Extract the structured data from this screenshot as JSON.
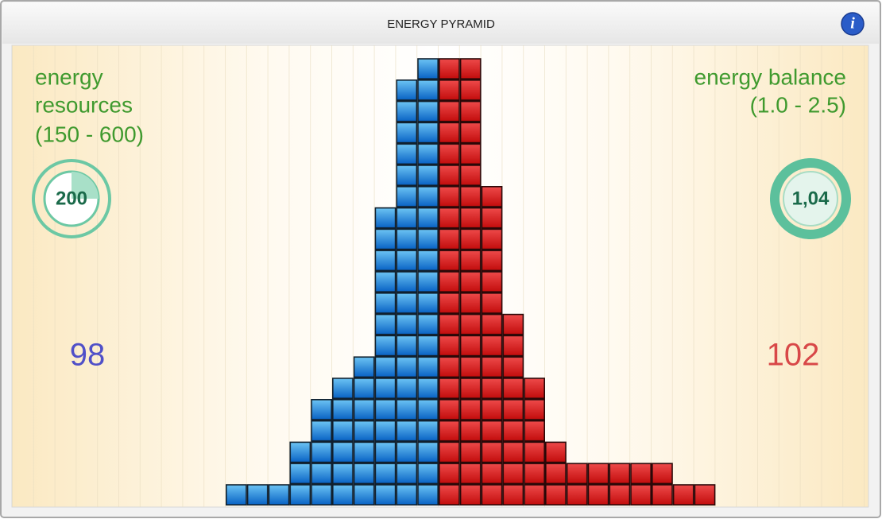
{
  "header": {
    "title": "ENERGY PYRAMID",
    "info": "i"
  },
  "left": {
    "label_lines": [
      "energy",
      "resources"
    ],
    "range": "(150 - 600)",
    "gauge": "200",
    "total": "98"
  },
  "right": {
    "label": "energy balance",
    "range": "(1.0 - 2.5)",
    "gauge": "1,04",
    "total": "102"
  },
  "pyramid": {
    "blue": [
      1,
      1,
      1,
      3,
      5,
      6,
      7,
      14,
      20,
      21
    ],
    "red": [
      21,
      21,
      15,
      9,
      6,
      3,
      2,
      2,
      2,
      2,
      2,
      1,
      1
    ]
  }
}
